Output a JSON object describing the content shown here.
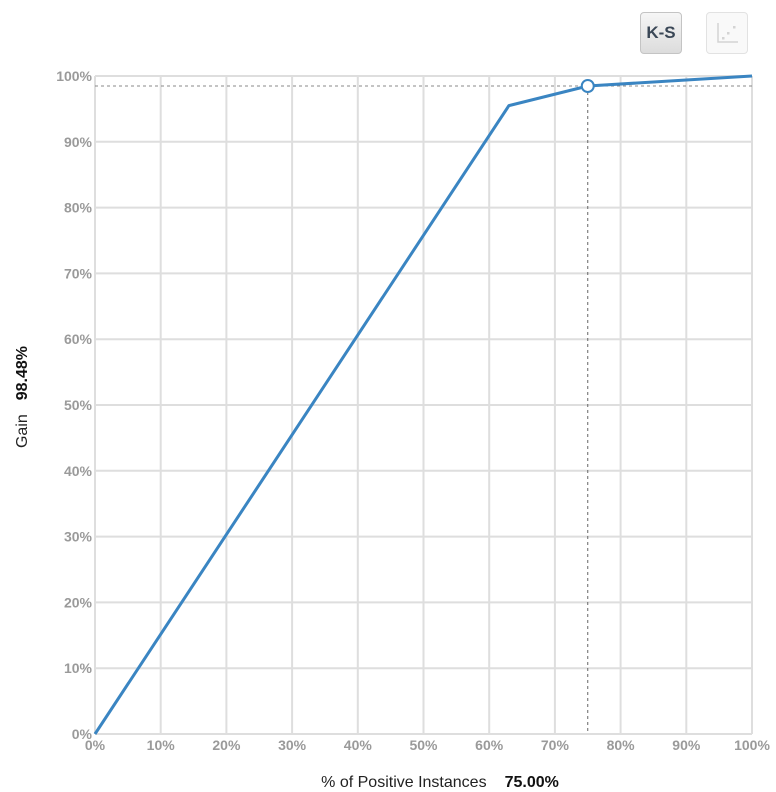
{
  "toolbar": {
    "ks_label": "K-S",
    "scatter_icon": "scatter-plot-icon"
  },
  "chart_data": {
    "type": "line",
    "xlabel": "% of Positive Instances",
    "ylabel": "Gain",
    "x_readout": "75.00%",
    "y_readout": "98.48%",
    "xlim": [
      0,
      100
    ],
    "ylim": [
      0,
      100
    ],
    "x_ticks": [
      "0%",
      "10%",
      "20%",
      "30%",
      "40%",
      "50%",
      "60%",
      "70%",
      "80%",
      "90%",
      "100%"
    ],
    "y_ticks": [
      "0%",
      "10%",
      "20%",
      "30%",
      "40%",
      "50%",
      "60%",
      "70%",
      "80%",
      "90%",
      "100%"
    ],
    "grid": true,
    "series": [
      {
        "x": [
          0,
          63,
          75,
          100
        ],
        "y": [
          0,
          95.5,
          98.48,
          100
        ],
        "color": "#3a85c2"
      }
    ],
    "marker": {
      "x": 75,
      "y": 98.48
    }
  }
}
